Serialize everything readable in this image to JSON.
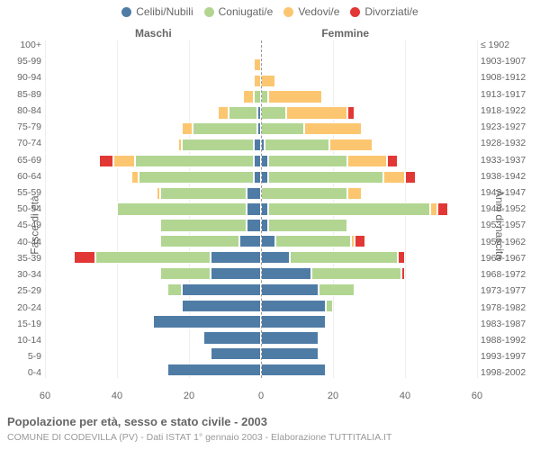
{
  "legend": [
    {
      "label": "Celibi/Nubili",
      "color": "#4f7ca5"
    },
    {
      "label": "Coniugati/e",
      "color": "#b2d692"
    },
    {
      "label": "Vedovi/e",
      "color": "#fcc670"
    },
    {
      "label": "Divorziati/e",
      "color": "#e23835"
    }
  ],
  "side_labels": {
    "left": "Maschi",
    "right": "Femmine"
  },
  "axis_labels": {
    "left": "Fasce di età",
    "right": "Anni di nascita"
  },
  "title": "Popolazione per età, sesso e stato civile - 2003",
  "subtitle": "COMUNE DI CODEVILLA (PV) - Dati ISTAT 1° gennaio 2003 - Elaborazione TUTTITALIA.IT",
  "x_axis": {
    "min": -60,
    "max": 60,
    "ticks": [
      60,
      40,
      20,
      0,
      20,
      40,
      60
    ]
  },
  "colors": {
    "background": "#ffffff",
    "grid": "#eeeeee",
    "center_line": "#999999",
    "text": "#666666",
    "subtext": "#999999"
  },
  "row_label_fontsize": 10.5,
  "legend_fontsize": 12,
  "rows": [
    {
      "age": "100+",
      "birth": "≤ 1902",
      "m": [
        0,
        0,
        0,
        0
      ],
      "f": [
        0,
        0,
        0,
        0
      ]
    },
    {
      "age": "95-99",
      "birth": "1903-1907",
      "m": [
        0,
        0,
        2,
        0
      ],
      "f": [
        0,
        0,
        0,
        0
      ]
    },
    {
      "age": "90-94",
      "birth": "1908-1912",
      "m": [
        0,
        0,
        2,
        0
      ],
      "f": [
        0,
        0,
        4,
        0
      ]
    },
    {
      "age": "85-89",
      "birth": "1913-1917",
      "m": [
        0,
        2,
        3,
        0
      ],
      "f": [
        0,
        2,
        15,
        0
      ]
    },
    {
      "age": "80-84",
      "birth": "1918-1922",
      "m": [
        1,
        8,
        3,
        0
      ],
      "f": [
        0,
        7,
        17,
        2
      ]
    },
    {
      "age": "75-79",
      "birth": "1923-1927",
      "m": [
        1,
        18,
        3,
        0
      ],
      "f": [
        0,
        12,
        16,
        0
      ]
    },
    {
      "age": "70-74",
      "birth": "1928-1932",
      "m": [
        2,
        20,
        1,
        0
      ],
      "f": [
        1,
        18,
        12,
        0
      ]
    },
    {
      "age": "65-69",
      "birth": "1933-1937",
      "m": [
        2,
        33,
        6,
        4
      ],
      "f": [
        2,
        22,
        11,
        3
      ]
    },
    {
      "age": "60-64",
      "birth": "1938-1942",
      "m": [
        2,
        32,
        2,
        0
      ],
      "f": [
        2,
        32,
        6,
        3
      ]
    },
    {
      "age": "55-59",
      "birth": "1943-1947",
      "m": [
        4,
        24,
        1,
        0
      ],
      "f": [
        0,
        24,
        4,
        0
      ]
    },
    {
      "age": "50-54",
      "birth": "1948-1952",
      "m": [
        4,
        36,
        0,
        0
      ],
      "f": [
        2,
        45,
        2,
        3
      ]
    },
    {
      "age": "45-49",
      "birth": "1953-1957",
      "m": [
        4,
        24,
        0,
        0
      ],
      "f": [
        2,
        22,
        0,
        0
      ]
    },
    {
      "age": "40-44",
      "birth": "1958-1962",
      "m": [
        6,
        22,
        0,
        0
      ],
      "f": [
        4,
        21,
        1,
        3
      ]
    },
    {
      "age": "35-39",
      "birth": "1963-1967",
      "m": [
        14,
        32,
        0,
        6
      ],
      "f": [
        8,
        30,
        0,
        2
      ]
    },
    {
      "age": "30-34",
      "birth": "1968-1972",
      "m": [
        14,
        14,
        0,
        0
      ],
      "f": [
        14,
        25,
        0,
        1
      ]
    },
    {
      "age": "25-29",
      "birth": "1973-1977",
      "m": [
        22,
        4,
        0,
        0
      ],
      "f": [
        16,
        10,
        0,
        0
      ]
    },
    {
      "age": "20-24",
      "birth": "1978-1982",
      "m": [
        22,
        0,
        0,
        0
      ],
      "f": [
        18,
        2,
        0,
        0
      ]
    },
    {
      "age": "15-19",
      "birth": "1983-1987",
      "m": [
        30,
        0,
        0,
        0
      ],
      "f": [
        18,
        0,
        0,
        0
      ]
    },
    {
      "age": "10-14",
      "birth": "1988-1992",
      "m": [
        16,
        0,
        0,
        0
      ],
      "f": [
        16,
        0,
        0,
        0
      ]
    },
    {
      "age": "5-9",
      "birth": "1993-1997",
      "m": [
        14,
        0,
        0,
        0
      ],
      "f": [
        16,
        0,
        0,
        0
      ]
    },
    {
      "age": "0-4",
      "birth": "1998-2002",
      "m": [
        26,
        0,
        0,
        0
      ],
      "f": [
        18,
        0,
        0,
        0
      ]
    }
  ]
}
